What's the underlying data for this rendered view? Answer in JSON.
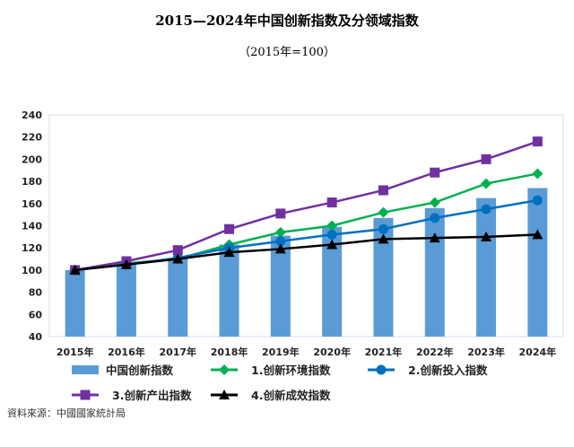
{
  "chart_data": {
    "type": "bar+line",
    "title": "2015—2024年中国创新指数及分领域指数",
    "subtitle": "（2015年=100）",
    "categories": [
      "2015年",
      "2016年",
      "2017年",
      "2018年",
      "2019年",
      "2020年",
      "2021年",
      "2022年",
      "2023年",
      "2024年"
    ],
    "ylim": [
      40,
      240
    ],
    "yticks": [
      40,
      60,
      80,
      100,
      120,
      140,
      160,
      180,
      200,
      220,
      240
    ],
    "grid": false,
    "legend_position": "bottom",
    "series": [
      {
        "name": "中国创新指数",
        "type": "bar",
        "color": "#5b9bd5",
        "values": [
          100,
          106,
          111,
          123,
          131,
          139,
          147,
          156,
          165,
          174
        ]
      },
      {
        "name": "1.创新环境指数",
        "type": "line",
        "marker": "diamond",
        "color": "#00b050",
        "values": [
          100,
          106,
          110,
          123,
          134,
          140,
          152,
          161,
          178,
          187
        ]
      },
      {
        "name": "2.创新投入指数",
        "type": "line",
        "marker": "circle",
        "color": "#0070c0",
        "values": [
          100,
          105,
          111,
          120,
          126,
          132,
          137,
          147,
          155,
          163
        ]
      },
      {
        "name": "3.创新产出指数",
        "type": "line",
        "marker": "square",
        "color": "#7030a0",
        "values": [
          100,
          108,
          118,
          137,
          151,
          161,
          172,
          188,
          200,
          216
        ]
      },
      {
        "name": "4.创新成效指数",
        "type": "line",
        "marker": "triangle",
        "color": "#000000",
        "values": [
          100,
          105,
          110,
          116,
          119,
          123,
          128,
          129,
          130,
          132
        ]
      }
    ]
  },
  "source": "資料來源：中國國家統計局"
}
